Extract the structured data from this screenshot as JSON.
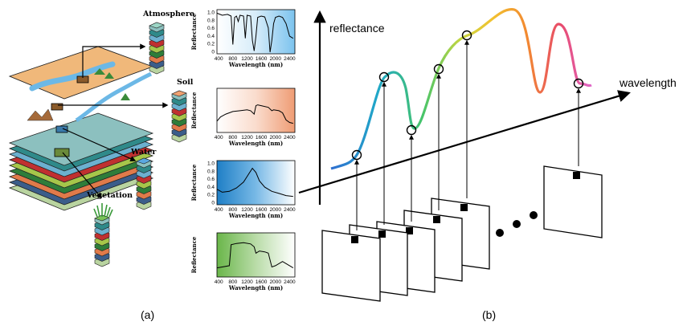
{
  "panel_a": {
    "caption": "(a)",
    "labels": {
      "atmosphere": "Atmosphere",
      "soil": "Soil",
      "water": "Water",
      "vegetation": "Vegetation"
    },
    "layer_colors": [
      "#8cc0bf",
      "#2f8a8a",
      "#6cb0cf",
      "#c03030",
      "#a6c64a",
      "#2e7d3a",
      "#e07a4a",
      "#3b5d8a",
      "#b9d4a0"
    ],
    "spectra": [
      {
        "name": "atmosphere",
        "ylabel": "Reflectance",
        "xlabel": "Wavelength (nm)",
        "xticks": [
          "400",
          "800",
          "1200",
          "1600",
          "2000",
          "2400"
        ],
        "yticks": [
          "1.0",
          "0.8",
          "0.6",
          "0.4",
          "0.2",
          "0"
        ],
        "x": [
          350,
          500,
          650,
          750,
          800,
          850,
          900,
          950,
          1000,
          1100,
          1150,
          1200,
          1300,
          1350,
          1400,
          1450,
          1500,
          1600,
          1700,
          1800,
          1850,
          1900,
          1950,
          2000,
          2100,
          2200,
          2300,
          2400,
          2500
        ],
        "y": [
          0.95,
          0.9,
          0.92,
          0.88,
          0.2,
          0.85,
          0.88,
          0.75,
          0.9,
          0.88,
          0.35,
          0.9,
          0.88,
          0.3,
          0.05,
          0.4,
          0.85,
          0.88,
          0.86,
          0.6,
          0.02,
          0.3,
          0.7,
          0.85,
          0.88,
          0.85,
          0.7,
          0.4,
          0.35
        ],
        "gradient": [
          "#ffffff",
          "#d6ecf9",
          "#7cc3ee"
        ]
      },
      {
        "name": "soil",
        "ylabel": "Reflectance",
        "xlabel": "Wavelength (nm)",
        "xticks": [
          "400",
          "800",
          "1200",
          "1600",
          "2000",
          "2400"
        ],
        "x": [
          350,
          450,
          600,
          800,
          1000,
          1200,
          1300,
          1400,
          1450,
          1500,
          1600,
          1800,
          1900,
          1950,
          2100,
          2200,
          2300,
          2400,
          2500
        ],
        "y": [
          0.25,
          0.35,
          0.42,
          0.48,
          0.5,
          0.52,
          0.5,
          0.42,
          0.62,
          0.64,
          0.62,
          0.58,
          0.5,
          0.52,
          0.5,
          0.45,
          0.28,
          0.22,
          0.2
        ],
        "gradient": [
          "#ffffff",
          "#fadccd",
          "#ef9c74"
        ]
      },
      {
        "name": "water",
        "ylabel": "Reflectance",
        "xlabel": "Wavelength (nm)",
        "xticks": [
          "400",
          "800",
          "1200",
          "1600",
          "2000",
          "2400"
        ],
        "yticks": [
          "1.0",
          "0.8",
          "0.6",
          "0.4",
          "0.2",
          "0"
        ],
        "x": [
          350,
          500,
          700,
          900,
          1100,
          1250,
          1350,
          1450,
          1550,
          1700,
          1900,
          2100,
          2300,
          2500
        ],
        "y": [
          0.35,
          0.28,
          0.3,
          0.38,
          0.52,
          0.72,
          0.85,
          0.75,
          0.55,
          0.4,
          0.3,
          0.25,
          0.2,
          0.18
        ],
        "gradient": [
          "#1f7fc6",
          "#78b9e6",
          "#ffffff"
        ]
      },
      {
        "name": "vegetation",
        "ylabel": "Reflectance",
        "xlabel": "Wavelength (nm)",
        "xticks": [
          "400",
          "800",
          "1200",
          "1600",
          "2000",
          "2400"
        ],
        "x": [
          350,
          500,
          700,
          750,
          900,
          1100,
          1300,
          1400,
          1450,
          1550,
          1700,
          1800,
          1900,
          2000,
          2100,
          2200,
          2300,
          2400,
          2500
        ],
        "y": [
          0.2,
          0.22,
          0.25,
          0.75,
          0.78,
          0.8,
          0.77,
          0.7,
          0.55,
          0.6,
          0.58,
          0.55,
          0.22,
          0.25,
          0.3,
          0.35,
          0.3,
          0.25,
          0.2
        ],
        "gradient": [
          "#6ab64a",
          "#b9dca8",
          "#ffffff"
        ]
      }
    ]
  },
  "panel_b": {
    "caption": "(b)",
    "axis_y_label": "reflectance",
    "axis_x_label": "wavelength",
    "spectrum_colors": [
      "#2f6fd0",
      "#20a8c8",
      "#46c46a",
      "#c6d640",
      "#f2c230",
      "#f28a30",
      "#e84a6a",
      "#e066c8"
    ],
    "band_count": 6,
    "ellipsis": "• • •"
  }
}
